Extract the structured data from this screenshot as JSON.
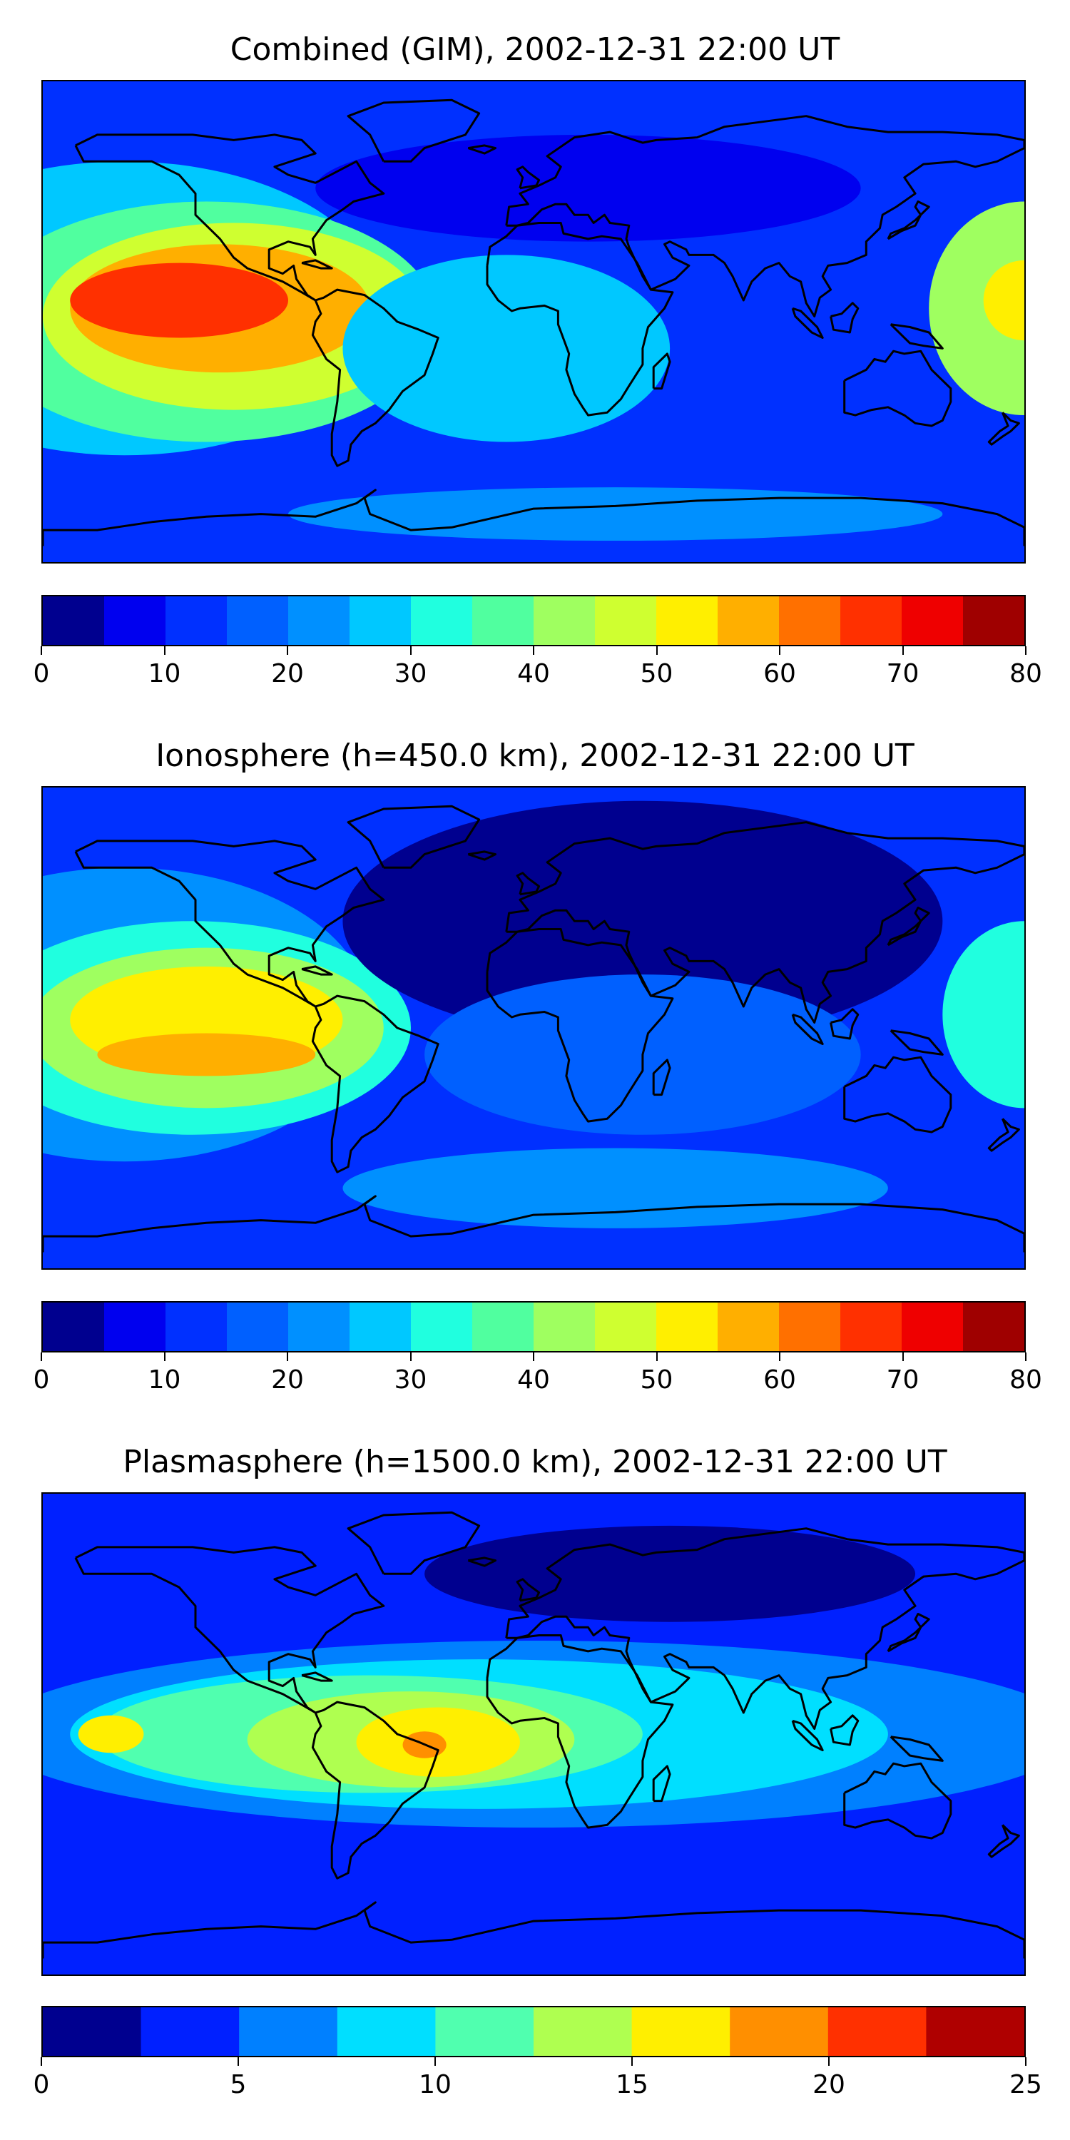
{
  "panels": [
    {
      "title": "Combined (GIM), 2002-12-31 22:00 UT",
      "colorbar": {
        "ticks": [
          "0",
          "10",
          "20",
          "30",
          "40",
          "50",
          "60",
          "70",
          "80"
        ],
        "min": 0,
        "max": 80,
        "colors": [
          "#00008f",
          "#0000ef",
          "#0030ff",
          "#0060ff",
          "#0090ff",
          "#00c8ff",
          "#20ffdf",
          "#50ff9f",
          "#9fff60",
          "#cfff30",
          "#ffef00",
          "#ffaf00",
          "#ff7000",
          "#ff3000",
          "#ef0000",
          "#9f0000"
        ]
      },
      "field": {
        "background": "#0030ff",
        "blobs": [
          {
            "lon": -150,
            "lat": 5,
            "rlon": 95,
            "rlat": 55,
            "level": 5
          },
          {
            "lon": -120,
            "lat": 0,
            "rlon": 85,
            "rlat": 45,
            "level": 7
          },
          {
            "lon": -110,
            "lat": 2,
            "rlon": 70,
            "rlat": 35,
            "level": 9
          },
          {
            "lon": -115,
            "lat": 5,
            "rlon": 55,
            "rlat": 24,
            "level": 11
          },
          {
            "lon": -130,
            "lat": 8,
            "rlon": 40,
            "rlat": 14,
            "level": 13
          },
          {
            "lon": 180,
            "lat": 5,
            "rlon": 35,
            "rlat": 40,
            "level": 8
          },
          {
            "lon": 180,
            "lat": 8,
            "rlon": 15,
            "rlat": 15,
            "level": 10
          },
          {
            "lon": -10,
            "lat": -10,
            "rlon": 60,
            "rlat": 35,
            "level": 5
          },
          {
            "lon": 20,
            "lat": 50,
            "rlon": 100,
            "rlat": 20,
            "level": 1
          },
          {
            "lon": 30,
            "lat": -72,
            "rlon": 120,
            "rlat": 10,
            "level": 4
          }
        ]
      }
    },
    {
      "title": "Ionosphere  (h=450.0 km), 2002-12-31 22:00 UT",
      "colorbar": {
        "ticks": [
          "0",
          "10",
          "20",
          "30",
          "40",
          "50",
          "60",
          "70",
          "80"
        ],
        "min": 0,
        "max": 80,
        "colors": [
          "#00008f",
          "#0000ef",
          "#0030ff",
          "#0060ff",
          "#0090ff",
          "#00c8ff",
          "#20ffdf",
          "#50ff9f",
          "#9fff60",
          "#cfff30",
          "#ffef00",
          "#ffaf00",
          "#ff7000",
          "#ff3000",
          "#ef0000",
          "#9f0000"
        ]
      },
      "field": {
        "background": "#0030ff",
        "blobs": [
          {
            "lon": -150,
            "lat": 5,
            "rlon": 90,
            "rlat": 55,
            "level": 4
          },
          {
            "lon": -125,
            "lat": 0,
            "rlon": 80,
            "rlat": 40,
            "level": 6
          },
          {
            "lon": -120,
            "lat": 0,
            "rlon": 65,
            "rlat": 30,
            "level": 8
          },
          {
            "lon": -120,
            "lat": 3,
            "rlon": 50,
            "rlat": 20,
            "level": 10
          },
          {
            "lon": -120,
            "lat": -10,
            "rlon": 40,
            "rlat": 8,
            "level": 11
          },
          {
            "lon": 180,
            "lat": 5,
            "rlon": 30,
            "rlat": 35,
            "level": 6
          },
          {
            "lon": 40,
            "lat": 40,
            "rlon": 110,
            "rlat": 45,
            "level": 0
          },
          {
            "lon": 40,
            "lat": -10,
            "rlon": 80,
            "rlat": 30,
            "level": 3
          },
          {
            "lon": 30,
            "lat": -60,
            "rlon": 100,
            "rlat": 15,
            "level": 4
          }
        ]
      }
    },
    {
      "title": "Plasmasphere (h=1500.0 km), 2002-12-31 22:00 UT",
      "colorbar": {
        "ticks": [
          "0",
          "5",
          "10",
          "15",
          "20",
          "25"
        ],
        "min": 0,
        "max": 25,
        "colors": [
          "#00008f",
          "#0020ff",
          "#0080ff",
          "#00dfff",
          "#50ffaf",
          "#afff50",
          "#ffef00",
          "#ff8f00",
          "#ff3000",
          "#af0000"
        ]
      },
      "field": {
        "background": "#0020ff",
        "blobs": [
          {
            "lon": 0,
            "lat": 0,
            "rlon": 200,
            "rlat": 35,
            "level": 2
          },
          {
            "lon": -20,
            "lat": 0,
            "rlon": 150,
            "rlat": 28,
            "level": 3
          },
          {
            "lon": -60,
            "lat": 0,
            "rlon": 100,
            "rlat": 22,
            "level": 4
          },
          {
            "lon": -45,
            "lat": -2,
            "rlon": 60,
            "rlat": 18,
            "level": 5
          },
          {
            "lon": -35,
            "lat": -3,
            "rlon": 30,
            "rlat": 13,
            "level": 6
          },
          {
            "lon": -40,
            "lat": -4,
            "rlon": 8,
            "rlat": 5,
            "level": 7
          },
          {
            "lon": -155,
            "lat": 0,
            "rlon": 12,
            "rlat": 7,
            "level": 6
          },
          {
            "lon": 50,
            "lat": 60,
            "rlon": 90,
            "rlat": 18,
            "level": 0
          }
        ]
      }
    }
  ]
}
